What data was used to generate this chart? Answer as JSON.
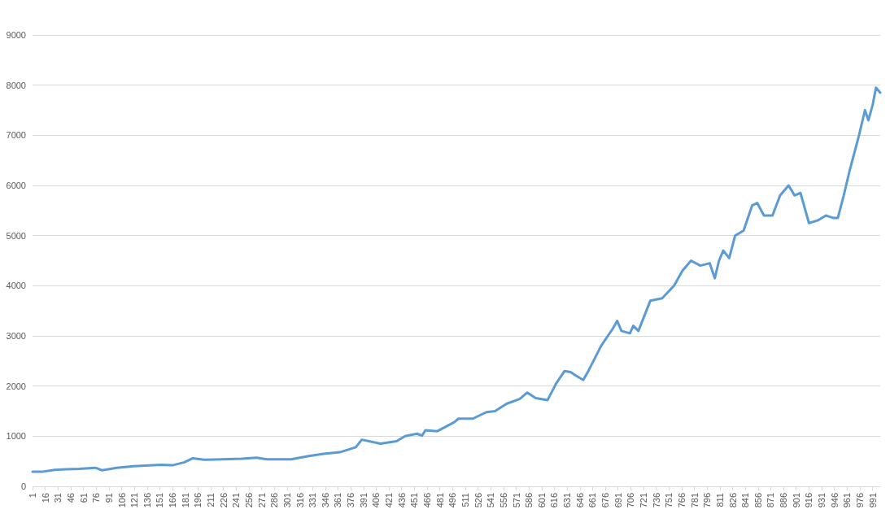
{
  "chart_data": {
    "type": "line",
    "xlim": [
      1,
      1000
    ],
    "xticks": [
      1,
      16,
      31,
      46,
      61,
      76,
      91,
      106,
      121,
      136,
      151,
      166,
      181,
      196,
      211,
      226,
      241,
      256,
      271,
      286,
      301,
      316,
      331,
      346,
      361,
      376,
      391,
      406,
      421,
      436,
      451,
      466,
      481,
      496,
      511,
      526,
      541,
      556,
      571,
      586,
      601,
      616,
      631,
      646,
      661,
      676,
      691,
      706,
      721,
      736,
      751,
      766,
      781,
      796,
      811,
      826,
      841,
      856,
      871,
      886,
      901,
      916,
      931,
      946,
      961,
      976,
      991
    ],
    "ylim": [
      0,
      9000
    ],
    "yticks": [
      0,
      1000,
      2000,
      3000,
      4000,
      5000,
      6000,
      7000,
      8000,
      9000
    ],
    "grid": "y",
    "marker": "none",
    "line_style": "solid",
    "series": [
      {
        "color": "#5b9bd5",
        "x": [
          1,
          12,
          27,
          40,
          56,
          75,
          83,
          100,
          120,
          152,
          166,
          180,
          190,
          203,
          225,
          248,
          265,
          277,
          290,
          306,
          325,
          344,
          363,
          382,
          389,
          411,
          430,
          440,
          454,
          460,
          464,
          478,
          498,
          503,
          520,
          536,
          546,
          560,
          575,
          584,
          594,
          608,
          618,
          628,
          635,
          642,
          650,
          656,
          671,
          685,
          690,
          695,
          705,
          709,
          715,
          729,
          743,
          757,
          767,
          777,
          788,
          799,
          805,
          810,
          815,
          822,
          829,
          839,
          849,
          855,
          863,
          873,
          882,
          892,
          899,
          906,
          916,
          926,
          936,
          945,
          950,
          957,
          964,
          975,
          982,
          986,
          991,
          995,
          1000
        ],
        "values": [
          290,
          290,
          330,
          340,
          350,
          370,
          320,
          370,
          400,
          430,
          420,
          480,
          560,
          530,
          540,
          550,
          570,
          540,
          540,
          540,
          600,
          650,
          680,
          780,
          930,
          850,
          900,
          1000,
          1050,
          1010,
          1120,
          1100,
          1280,
          1350,
          1350,
          1480,
          1500,
          1650,
          1740,
          1870,
          1760,
          1720,
          2050,
          2300,
          2280,
          2200,
          2120,
          2300,
          2800,
          3150,
          3300,
          3100,
          3050,
          3200,
          3100,
          3700,
          3750,
          4000,
          4300,
          4500,
          4400,
          4450,
          4150,
          4500,
          4700,
          4550,
          5000,
          5100,
          5600,
          5650,
          5400,
          5400,
          5800,
          6000,
          5800,
          5850,
          5250,
          5300,
          5400,
          5350,
          5350,
          5800,
          6300,
          7000,
          7500,
          7300,
          7600,
          7950,
          7850
        ]
      }
    ]
  }
}
